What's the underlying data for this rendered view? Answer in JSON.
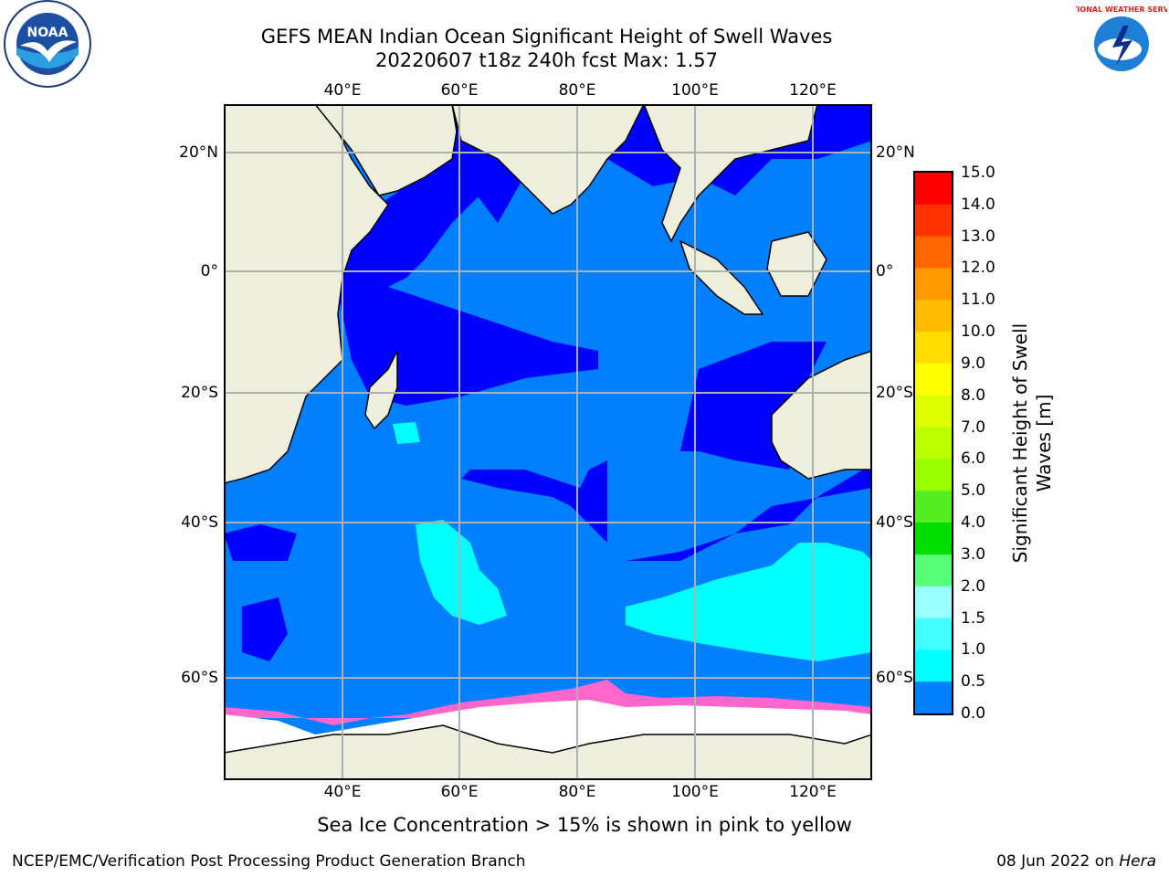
{
  "title": {
    "line1": "GEFS MEAN Indian Ocean Significant Height of Swell Waves",
    "line2": "20220607 t18z 240h fcst   Max: 1.57"
  },
  "map": {
    "lon_range": [
      20,
      130
    ],
    "lat_range": [
      -77,
      28
    ],
    "lon_ticks": [
      "40°E",
      "60°E",
      "80°E",
      "100°E",
      "120°E"
    ],
    "lat_ticks": [
      "20°N",
      "0°",
      "20°S",
      "40°S",
      "60°S"
    ],
    "colors": {
      "land": "#eeeedd",
      "swell_0_0.5": "#0000ff",
      "swell_0.5_1": "#0080ff",
      "swell_1_1.5": "#00ffff",
      "sea_ice": "#ff66cc",
      "ice_shelf": "#ffffff",
      "grid": "#b0b0b0"
    }
  },
  "colorbar": {
    "ticks": [
      "15.0",
      "14.0",
      "13.0",
      "12.0",
      "11.0",
      "10.0",
      "9.0",
      "8.0",
      "7.0",
      "6.0",
      "5.0",
      "4.0",
      "3.0",
      "2.0",
      "1.5",
      "1.0",
      "0.5",
      "0.0"
    ],
    "colors": [
      "#ff0000",
      "#ff3300",
      "#ff6600",
      "#ff9900",
      "#ffbb00",
      "#ffdd00",
      "#ffff00",
      "#ddff00",
      "#bbff00",
      "#99ff00",
      "#55ee22",
      "#00dd00",
      "#55ff77",
      "#99ffff",
      "#44ffff",
      "#00ffff",
      "#0080ff",
      "#0000ff"
    ],
    "label_line1": "Significant Height of Swell",
    "label_line2": "Waves [m]"
  },
  "caption": "Sea Ice Concentration > 15% is shown in pink to yellow",
  "footer": {
    "left": "NCEP/EMC/Verification Post Processing Product Generation Branch",
    "right_date": "08 Jun 2022 on ",
    "right_host": "Hera"
  },
  "logos": {
    "left": "NOAA",
    "right": "NATIONAL WEATHER SERVICE"
  }
}
